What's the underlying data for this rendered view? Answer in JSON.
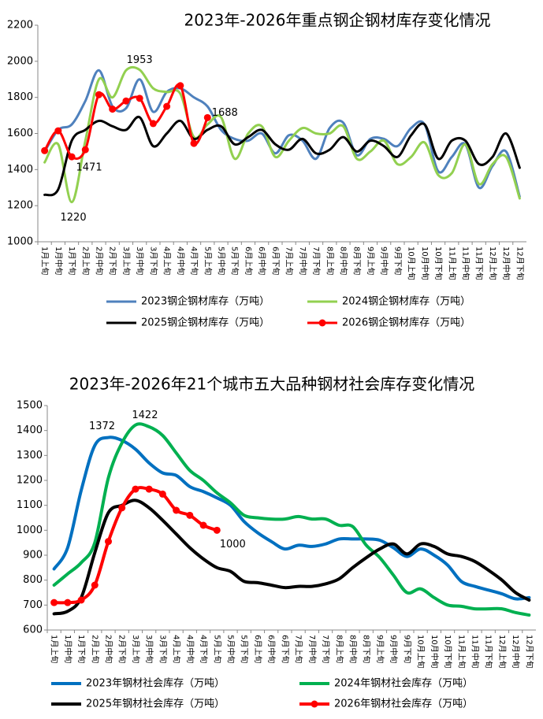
{
  "chart_data": [
    {
      "type": "line",
      "title": "2023年-2026年重点钢企钢材库存变化情况",
      "categories": [
        "1月上旬",
        "1月中旬",
        "1月下旬",
        "2月上旬",
        "2月中旬",
        "2月下旬",
        "3月上旬",
        "3月中旬",
        "3月下旬",
        "4月上旬",
        "4月中旬",
        "4月下旬",
        "5月上旬",
        "5月中旬",
        "5月下旬",
        "6月上旬",
        "6月中旬",
        "6月下旬",
        "7月上旬",
        "7月中旬",
        "7月下旬",
        "8月上旬",
        "8月中旬",
        "8月下旬",
        "9月上旬",
        "9月中旬",
        "9月下旬",
        "10月上旬",
        "10月中旬",
        "10月下旬",
        "11月上旬",
        "11月中旬",
        "11月下旬",
        "12月上旬",
        "12月中旬",
        "12月下旬"
      ],
      "series": [
        {
          "name": "2023钢企钢材库存（万吨）",
          "color": "#4f81bd",
          "values": [
            1500,
            1620,
            1650,
            1780,
            1950,
            1750,
            1740,
            1900,
            1720,
            1830,
            1850,
            1800,
            1750,
            1620,
            1570,
            1560,
            1600,
            1490,
            1590,
            1560,
            1460,
            1630,
            1660,
            1480,
            1570,
            1570,
            1530,
            1630,
            1650,
            1390,
            1470,
            1540,
            1300,
            1420,
            1500,
            1250
          ]
        },
        {
          "name": "2024钢企钢材库存（万吨）",
          "color": "#92d050",
          "values": [
            1440,
            1540,
            1220,
            1560,
            1900,
            1800,
            1950,
            1953,
            1850,
            1830,
            1820,
            1580,
            1650,
            1690,
            1460,
            1600,
            1640,
            1470,
            1560,
            1630,
            1600,
            1600,
            1640,
            1460,
            1500,
            1560,
            1430,
            1470,
            1550,
            1370,
            1380,
            1540,
            1320,
            1430,
            1470,
            1240
          ]
        },
        {
          "name": "2025钢企钢材库存（万吨）",
          "color": "#000000",
          "values": [
            1260,
            1290,
            1560,
            1620,
            1670,
            1640,
            1620,
            1690,
            1530,
            1600,
            1670,
            1570,
            1620,
            1640,
            1540,
            1580,
            1620,
            1540,
            1510,
            1570,
            1490,
            1510,
            1580,
            1500,
            1560,
            1530,
            1470,
            1590,
            1650,
            1460,
            1560,
            1560,
            1430,
            1470,
            1600,
            1410
          ]
        },
        {
          "name": "2026钢企钢材库存（万吨）",
          "color": "#ff0000",
          "markers": true,
          "values": [
            1505,
            1615,
            1471,
            1510,
            1815,
            1735,
            1780,
            1795,
            1655,
            1750,
            1865,
            1545,
            1688,
            null,
            null,
            null,
            null,
            null,
            null,
            null,
            null,
            null,
            null,
            null,
            null,
            null,
            null,
            null,
            null,
            null,
            null,
            null,
            null,
            null,
            null,
            null
          ]
        }
      ],
      "annotations": [
        "1953",
        "1688",
        "1471",
        "1220"
      ],
      "ylim": [
        1000,
        2200
      ],
      "yticks": [
        1000,
        1200,
        1400,
        1600,
        1800,
        2000,
        2200
      ],
      "grid": false
    },
    {
      "type": "line",
      "title": "2023年-2026年21个城市五大品种钢材社会库存变化情况",
      "categories": [
        "1月上旬",
        "1月中旬",
        "1月下旬",
        "2月上旬",
        "2月中旬",
        "2月下旬",
        "3月上旬",
        "3月中旬",
        "3月下旬",
        "4月上旬",
        "4月中旬",
        "4月下旬",
        "5月上旬",
        "5月中旬",
        "5月下旬",
        "6月上旬",
        "6月中旬",
        "6月下旬",
        "7月上旬",
        "7月中旬",
        "7月下旬",
        "8月上旬",
        "8月中旬",
        "8月下旬",
        "9月上旬",
        "9月中旬",
        "9月下旬",
        "10月上旬",
        "10月中旬",
        "10月下旬",
        "11月上旬",
        "11月中旬",
        "11月下旬",
        "12月上旬",
        "12月中旬",
        "12月下旬"
      ],
      "series": [
        {
          "name": "2023年钢材社会库存（万吨）",
          "color": "#0070c0",
          "values": [
            845,
            930,
            1160,
            1340,
            1372,
            1360,
            1325,
            1270,
            1230,
            1220,
            1175,
            1155,
            1130,
            1100,
            1035,
            990,
            955,
            925,
            940,
            935,
            945,
            965,
            965,
            965,
            960,
            930,
            895,
            925,
            900,
            860,
            795,
            775,
            760,
            745,
            725,
            730
          ]
        },
        {
          "name": "2024年钢材社会库存（万吨）",
          "color": "#00b050",
          "values": [
            780,
            825,
            870,
            950,
            1210,
            1350,
            1422,
            1415,
            1380,
            1310,
            1240,
            1200,
            1150,
            1110,
            1060,
            1050,
            1045,
            1045,
            1055,
            1045,
            1045,
            1020,
            1015,
            940,
            890,
            820,
            750,
            765,
            730,
            700,
            695,
            685,
            685,
            685,
            670,
            660
          ]
        },
        {
          "name": "2025年钢材社会库存（万吨）",
          "color": "#000000",
          "values": [
            665,
            675,
            730,
            910,
            1070,
            1100,
            1120,
            1090,
            1040,
            985,
            930,
            885,
            850,
            835,
            795,
            790,
            780,
            770,
            775,
            775,
            785,
            805,
            850,
            890,
            925,
            945,
            905,
            945,
            935,
            905,
            895,
            875,
            840,
            800,
            750,
            720
          ]
        },
        {
          "name": "2026年钢材社会库存（万吨）",
          "color": "#ff0000",
          "markers": true,
          "values": [
            710,
            710,
            720,
            780,
            955,
            1090,
            1165,
            1165,
            1145,
            1080,
            1060,
            1020,
            1000,
            null,
            null,
            null,
            null,
            null,
            null,
            null,
            null,
            null,
            null,
            null,
            null,
            null,
            null,
            null,
            null,
            null,
            null,
            null,
            null,
            null,
            null,
            null
          ]
        }
      ],
      "annotations": [
        "1372",
        "1422",
        "1000"
      ],
      "ylim": [
        600,
        1500
      ],
      "yticks": [
        600,
        700,
        800,
        900,
        1000,
        1100,
        1200,
        1300,
        1400,
        1500
      ],
      "grid": false
    }
  ]
}
